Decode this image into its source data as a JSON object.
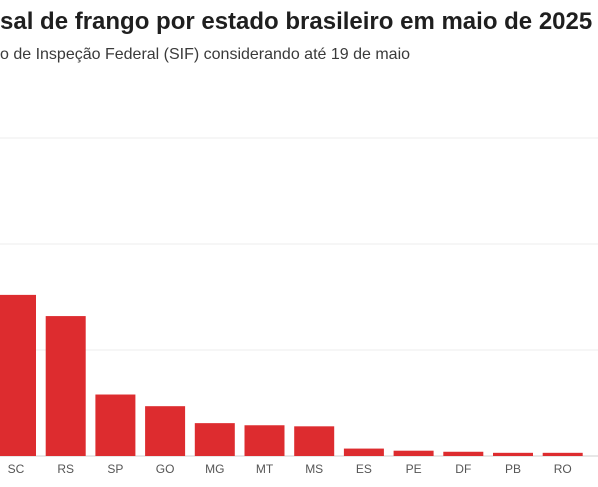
{
  "title": "sal de frango por estado brasileiro em maio de 2025",
  "subtitle": "o de Inspeção Federal (SIF) considerando até 19 de maio",
  "colors": {
    "bar": "#dd2c2f",
    "grid": "#ececec",
    "axis": "#555555"
  },
  "chart_data": {
    "type": "bar",
    "title": "sal de frango por estado brasileiro em maio de 2025",
    "subtitle": "o de Inspeção Federal (SIF) considerando até 19 de maio",
    "categories": [
      "SC",
      "RS",
      "SP",
      "GO",
      "MG",
      "MT",
      "MS",
      "ES",
      "PE",
      "DF",
      "PB",
      "RO"
    ],
    "values": [
      152,
      132,
      58,
      47,
      31,
      29,
      28,
      7,
      5,
      4,
      3,
      3
    ],
    "ylim": [
      0,
      300
    ],
    "grid": true,
    "xlabel": "",
    "ylabel": ""
  }
}
